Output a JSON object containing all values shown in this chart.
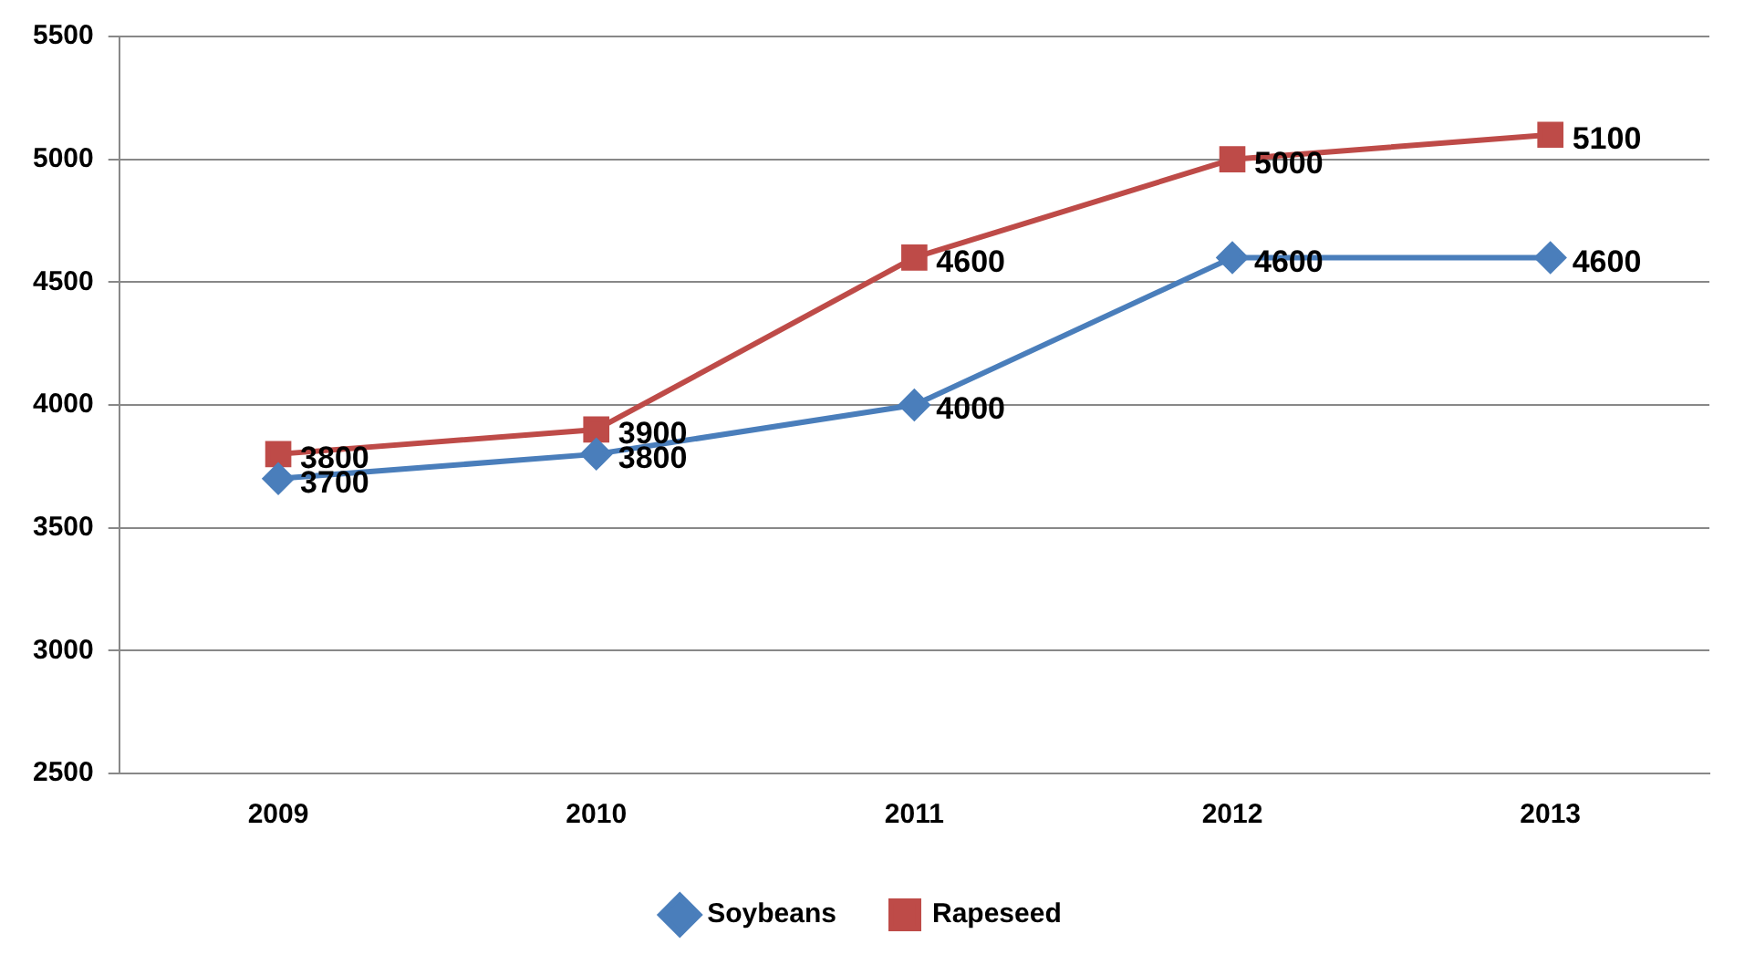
{
  "chart_data": {
    "type": "line",
    "categories": [
      "2009",
      "2010",
      "2011",
      "2012",
      "2013"
    ],
    "series": [
      {
        "name": "Soybeans",
        "color": "#4a7ebb",
        "marker": "diamond",
        "values": [
          3700,
          3800,
          4000,
          4600,
          4600
        ]
      },
      {
        "name": "Rapeseed",
        "color": "#be4b48",
        "marker": "square",
        "values": [
          3800,
          3900,
          4600,
          5000,
          5100
        ]
      }
    ],
    "ylim": [
      2500,
      5500
    ],
    "yticks": [
      2500,
      3000,
      3500,
      4000,
      4500,
      5000,
      5500
    ],
    "grid": "y",
    "legend": "bottom",
    "data_labels": true
  }
}
